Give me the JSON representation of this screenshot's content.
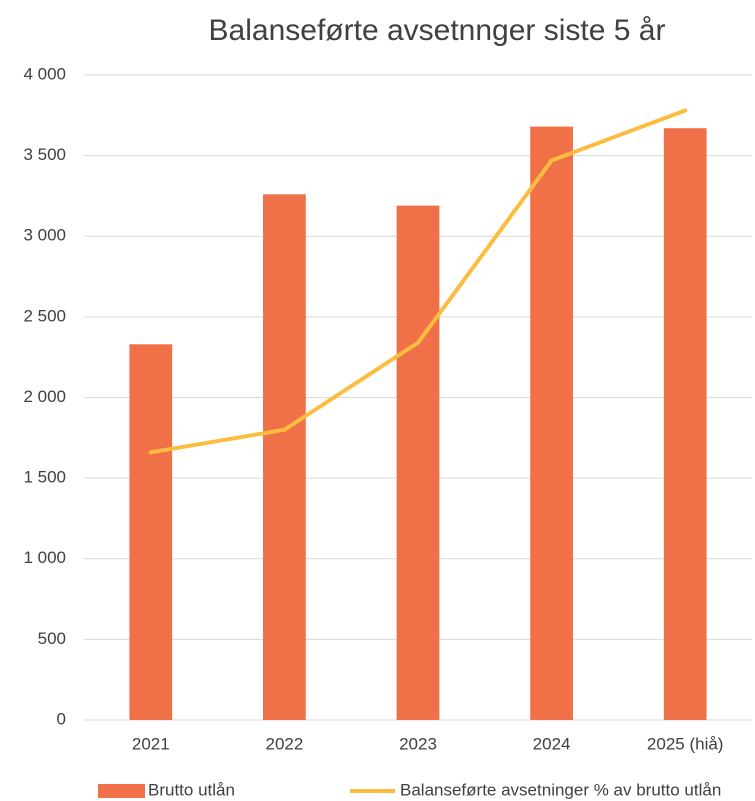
{
  "chart_data": {
    "type": "bar",
    "title": "Balanseførte avsetnnger siste 5 år",
    "categories": [
      "2021",
      "2022",
      "2023",
      "2024",
      "2025 (hiå)"
    ],
    "series": [
      {
        "name": "Brutto utlån",
        "type": "bar",
        "color": "#f07048",
        "values": [
          2330,
          3260,
          3190,
          3680,
          3670
        ]
      },
      {
        "name": "Balanseførte avsetninger % av brutto utlån",
        "type": "line",
        "color": "#fbbd3f",
        "values": [
          1660,
          1800,
          2340,
          3470,
          3780
        ]
      }
    ],
    "ylim": [
      0,
      4000
    ],
    "yticks": [
      0,
      500,
      {
        "value": 1000,
        "label": "1 000"
      },
      {
        "value": 1500,
        "label": "1 500"
      },
      {
        "value": 2000,
        "label": "2 000"
      },
      {
        "value": 2500,
        "label": "2 500"
      },
      {
        "value": 3000,
        "label": "3 000"
      },
      {
        "value": 3500,
        "label": "3 500"
      },
      {
        "value": 4000,
        "label": "4 000"
      }
    ],
    "grid": true,
    "legend": "bottom"
  }
}
